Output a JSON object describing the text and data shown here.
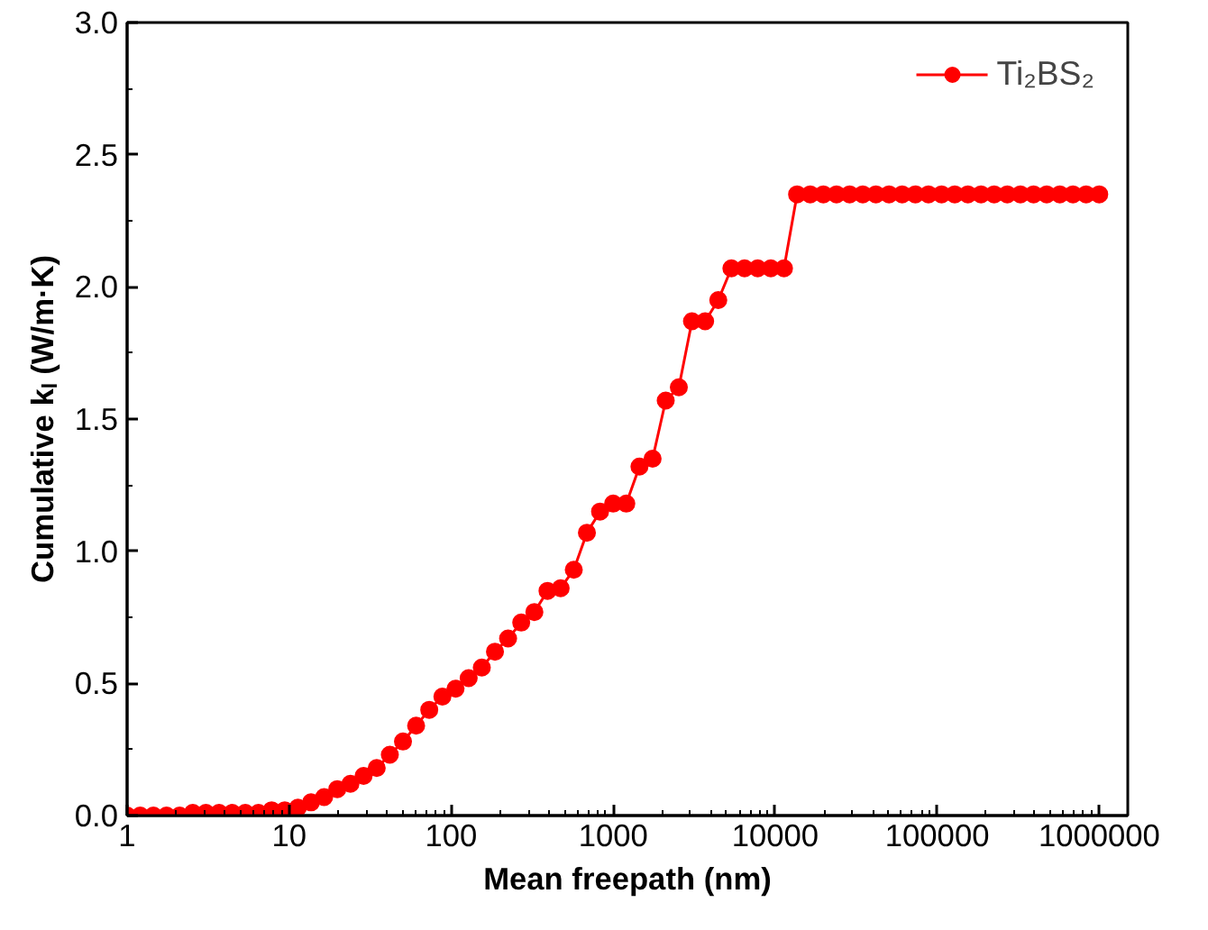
{
  "chart_data": {
    "type": "line",
    "xlabel": "Mean freepath (nm)",
    "ylabel": "Cumulative kₗ (W/m·K)",
    "log": "x",
    "grid": false,
    "legend": "top right",
    "marker": "circle",
    "line_style": "solid",
    "xlim": [
      1,
      1500000
    ],
    "ylim": [
      0,
      3
    ],
    "xticks": [
      1,
      10,
      100,
      1000,
      10000,
      100000,
      1000000
    ],
    "yticks": [
      {
        "value": 0,
        "label": "0.0"
      },
      {
        "value": 0.5,
        "label": "0.5"
      },
      {
        "value": 1,
        "label": "1.0"
      },
      {
        "value": 1.5,
        "label": "1.5"
      },
      {
        "value": 2,
        "label": "2.0"
      },
      {
        "value": 2.5,
        "label": "2.5"
      },
      {
        "value": 3,
        "label": "3.0"
      }
    ],
    "x": [
      1,
      1.205,
      1.453,
      1.751,
      2.11,
      2.543,
      3.065,
      3.695,
      4.453,
      5.367,
      6.469,
      7.797,
      9.397,
      11.33,
      13.65,
      16.45,
      19.83,
      23.9,
      28.81,
      34.72,
      41.84,
      50.43,
      60.78,
      73.26,
      88.3,
      106.4,
      128.3,
      154.6,
      186.4,
      224.6,
      270.7,
      326.3,
      393.3,
      474,
      571.3,
      688.6,
      829.9,
      1000,
      1205,
      1453,
      1751,
      2110,
      2543,
      3065,
      3695,
      4453,
      5367,
      6469,
      7797,
      9397,
      11330,
      13650,
      16450,
      19830,
      23900,
      28810,
      34720,
      41840,
      50430,
      60780,
      73260,
      88300,
      106400,
      128300,
      154600,
      186400,
      224600,
      270700,
      326300,
      393300,
      474000,
      571300,
      688600,
      829900,
      1000000
    ],
    "series": [
      {
        "name": "Ti₂BS₂",
        "color": "#ff0000",
        "values": [
          0,
          0,
          0,
          0,
          0,
          0.01,
          0.01,
          0.01,
          0.01,
          0.01,
          0.01,
          0.02,
          0.02,
          0.03,
          0.05,
          0.07,
          0.1,
          0.12,
          0.15,
          0.18,
          0.23,
          0.28,
          0.34,
          0.4,
          0.45,
          0.48,
          0.52,
          0.56,
          0.62,
          0.67,
          0.73,
          0.77,
          0.85,
          0.86,
          0.93,
          1.07,
          1.15,
          1.18,
          1.18,
          1.32,
          1.35,
          1.57,
          1.62,
          1.87,
          1.87,
          1.95,
          2.07,
          2.07,
          2.07,
          2.07,
          2.07,
          2.35,
          2.35,
          2.35,
          2.35,
          2.35,
          2.35,
          2.35,
          2.35,
          2.35,
          2.35,
          2.35,
          2.35,
          2.35,
          2.35,
          2.35,
          2.35,
          2.35,
          2.35,
          2.35,
          2.35,
          2.35,
          2.35,
          2.35,
          2.35
        ]
      }
    ]
  }
}
